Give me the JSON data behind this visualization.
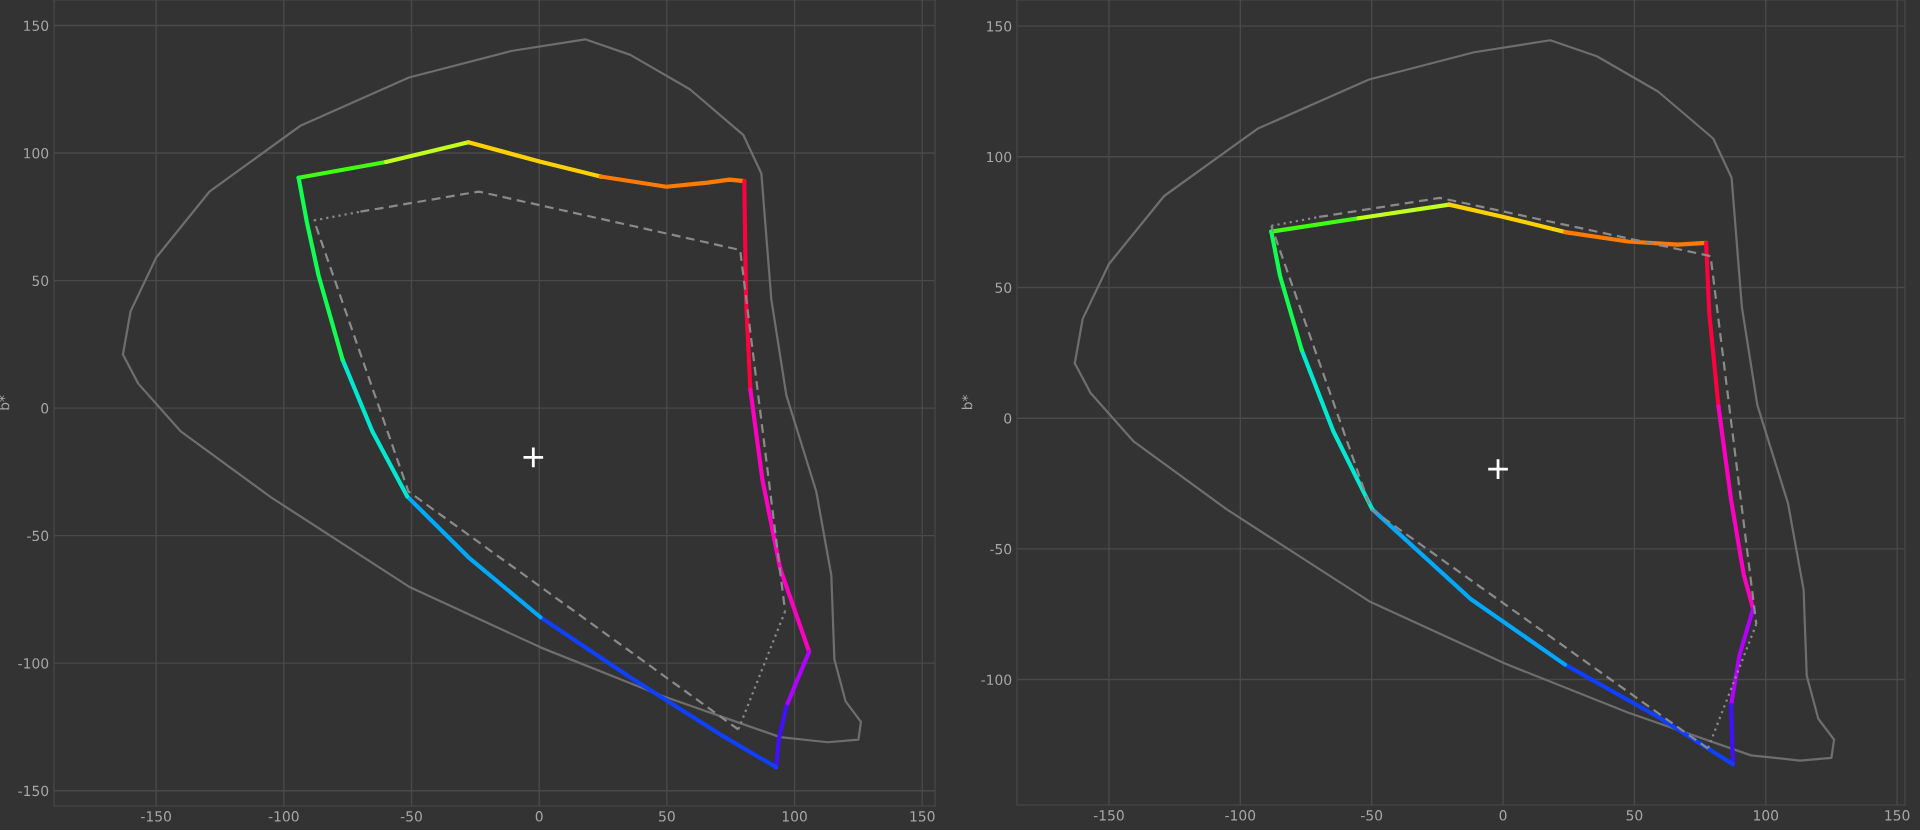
{
  "chart_data": [
    {
      "type": "line",
      "ylabel": "b*",
      "xlim": [
        -190,
        155
      ],
      "ylim": [
        -156,
        160
      ],
      "xticks": [
        -150,
        -100,
        -50,
        0,
        50,
        100,
        150
      ],
      "yticks": [
        -150,
        -100,
        -50,
        0,
        50,
        100,
        150
      ],
      "grid": true,
      "series": [
        {
          "color": "#6e6e6e",
          "line_style": "solid",
          "x": [
            -163,
            -160,
            -150,
            -129,
            -93.5,
            -51,
            -11,
            18,
            35.7,
            59,
            80,
            87,
            90.9,
            96.8,
            108.5,
            114.4,
            115.6,
            120,
            126
          ],
          "values": [
            21,
            38,
            59,
            85,
            110.7,
            129.6,
            140,
            144.6,
            138.5,
            125,
            107,
            92,
            42.6,
            5,
            -32.7,
            -65.6,
            -98.5,
            -115,
            -123
          ]
        },
        {
          "color": "#6e6e6e",
          "line_style": "solid",
          "x": [
            126,
            125,
            113,
            94.4,
            47.5,
            0.5,
            -51,
            -105,
            -140.5,
            -157,
            -163
          ],
          "values": [
            -123,
            -130,
            -131,
            -129,
            -112.6,
            -93.8,
            -70,
            -35,
            -9,
            9.6,
            21
          ]
        },
        {
          "color": "#8a8a8a",
          "line_style": "dashed",
          "x": [
            -70,
            -23.7,
            78.7,
            96.3
          ],
          "values": [
            77,
            84.9,
            62,
            -79.7
          ]
        },
        {
          "color": "#8a8a8a",
          "line_style": "dashed",
          "x": [
            78,
            -51.2,
            -88.2
          ],
          "values": [
            -126,
            -32.7,
            73.6
          ]
        },
        {
          "color": "#8a8a8a",
          "line_style": "dotted",
          "x": [
            -88.2,
            -70,
            null,
            96.3,
            78
          ],
          "values": [
            73.6,
            77,
            null,
            -79.7,
            -126
          ]
        },
        {
          "color": "#40ff10",
          "line_style": "solid",
          "x": [
            -94.2,
            -60
          ],
          "values": [
            90.3,
            96.5
          ]
        },
        {
          "color": "#c0ff20",
          "line_style": "solid",
          "x": [
            -60,
            -27.7
          ],
          "values": [
            96.5,
            104.2
          ]
        },
        {
          "color": "#ffd000",
          "line_style": "solid",
          "x": [
            -27.7,
            0.5,
            24
          ],
          "values": [
            104.2,
            96.6,
            90.8
          ]
        },
        {
          "color": "#ff7a00",
          "line_style": "solid",
          "x": [
            24,
            49.8,
            66,
            74.5,
            80.3
          ],
          "values": [
            90.8,
            86.8,
            88.4,
            89.6,
            89
          ]
        },
        {
          "color": "#ff0040",
          "line_style": "solid",
          "x": [
            80.3,
            81,
            82.7
          ],
          "values": [
            89,
            42.5,
            7.3
          ]
        },
        {
          "color": "#ff00c0",
          "line_style": "solid",
          "x": [
            82.7,
            87.4,
            94.4,
            105.7
          ],
          "values": [
            7.3,
            -28,
            -63,
            -95.5
          ]
        },
        {
          "color": "#b000ff",
          "line_style": "solid",
          "x": [
            105.7,
            100.5,
            96.8
          ],
          "values": [
            -95.5,
            -108,
            -117
          ]
        },
        {
          "color": "#4010ff",
          "line_style": "solid",
          "x": [
            96.8,
            93.8,
            92.8
          ],
          "values": [
            -117,
            -130,
            -140.8
          ]
        },
        {
          "color": "#1040ff",
          "line_style": "solid",
          "x": [
            92.8,
            71,
            35.7,
            0.5
          ],
          "values": [
            -140.8,
            -128,
            -105.6,
            -82
          ]
        },
        {
          "color": "#00a8ff",
          "line_style": "solid",
          "x": [
            0.5,
            -27.7,
            -51.7
          ],
          "values": [
            -82,
            -58.5,
            -34.6
          ]
        },
        {
          "color": "#00e8d0",
          "line_style": "solid",
          "x": [
            -51.7,
            -65.3,
            -77
          ],
          "values": [
            -34.6,
            -9.2,
            19
          ]
        },
        {
          "color": "#10ff50",
          "line_style": "solid",
          "x": [
            -77,
            -86.4,
            -91,
            -94.2
          ],
          "values": [
            19,
            52,
            73,
            90.3
          ]
        },
        {
          "type": "scatter",
          "color": "#ffffff",
          "marker": "cross",
          "x": [
            -2.3
          ],
          "values": [
            -19.3
          ]
        }
      ]
    },
    {
      "type": "line",
      "ylabel": "b*",
      "xlim": [
        -185,
        153
      ],
      "ylim": [
        -148,
        160
      ],
      "xticks": [
        -150,
        -100,
        -50,
        0,
        50,
        100,
        150
      ],
      "yticks": [
        -100,
        -50,
        0,
        50,
        100,
        150
      ],
      "grid": true,
      "series": [
        {
          "color": "#6e6e6e",
          "line_style": "solid",
          "x": [
            -163,
            -160,
            -150,
            -129,
            -93.5,
            -51,
            -11,
            18,
            35.7,
            59,
            80,
            87,
            90.9,
            96.8,
            108.5,
            114.4,
            115.6,
            120,
            126
          ],
          "values": [
            21,
            38,
            59,
            85,
            110.7,
            129.6,
            140,
            144.6,
            138.5,
            125,
            107,
            92,
            42.6,
            5,
            -32.7,
            -65.6,
            -98.5,
            -115,
            -123
          ]
        },
        {
          "color": "#6e6e6e",
          "line_style": "solid",
          "x": [
            126,
            125,
            113,
            94.4,
            47.5,
            0.5,
            -51,
            -105,
            -140.5,
            -157,
            -163
          ],
          "values": [
            -123,
            -130,
            -131,
            -129,
            -112.6,
            -93.8,
            -70,
            -35,
            -9,
            9.6,
            21
          ]
        },
        {
          "color": "#8a8a8a",
          "line_style": "dashed",
          "x": [
            -70,
            -24,
            79,
            96.4
          ],
          "values": [
            77,
            84.3,
            62,
            -78.8
          ]
        },
        {
          "color": "#8a8a8a",
          "line_style": "dashed",
          "x": [
            78,
            -50.3,
            -88.2
          ],
          "values": [
            -126.4,
            -34.8,
            73.6
          ]
        },
        {
          "color": "#8a8a8a",
          "line_style": "dotted",
          "x": [
            -88.2,
            -70,
            null,
            96.4,
            78
          ],
          "values": [
            73.6,
            77,
            null,
            -78.8,
            -126.4
          ]
        },
        {
          "color": "#40ff10",
          "line_style": "solid",
          "x": [
            -88.2,
            -55
          ],
          "values": [
            71.4,
            76.5
          ]
        },
        {
          "color": "#c0ff20",
          "line_style": "solid",
          "x": [
            -55,
            -20.5
          ],
          "values": [
            76.5,
            81.7
          ]
        },
        {
          "color": "#ffd000",
          "line_style": "solid",
          "x": [
            -20.5,
            -0.2,
            23.6
          ],
          "values": [
            81.7,
            77.1,
            71.2
          ]
        },
        {
          "color": "#ff7a00",
          "line_style": "solid",
          "x": [
            23.6,
            47.5,
            66.5,
            77.3
          ],
          "values": [
            71.2,
            67.6,
            66.4,
            67.1
          ]
        },
        {
          "color": "#ff0040",
          "line_style": "solid",
          "x": [
            77.3,
            78.5,
            82
          ],
          "values": [
            67.1,
            40.2,
            4.5
          ]
        },
        {
          "color": "#ff00c0",
          "line_style": "solid",
          "x": [
            82,
            86.8,
            91.6,
            95.2
          ],
          "values": [
            4.5,
            -31.2,
            -59.8,
            -72.9
          ]
        },
        {
          "color": "#b000ff",
          "line_style": "solid",
          "x": [
            95.2,
            90,
            86.8
          ],
          "values": [
            -72.9,
            -90.7,
            -109.8
          ]
        },
        {
          "color": "#4010ff",
          "line_style": "solid",
          "x": [
            86.8,
            87.5
          ],
          "values": [
            -109.8,
            -132.4
          ]
        },
        {
          "color": "#1040ff",
          "line_style": "solid",
          "x": [
            87.5,
            59.4,
            23.6
          ],
          "values": [
            -132.4,
            -114.5,
            -94.3
          ]
        },
        {
          "color": "#00a8ff",
          "line_style": "solid",
          "x": [
            23.6,
            -12.2,
            -49.8
          ],
          "values": [
            -94.3,
            -69.3,
            -34.8
          ]
        },
        {
          "color": "#00e8d0",
          "line_style": "solid",
          "x": [
            -49.8,
            -64.6,
            -76.6
          ],
          "values": [
            -34.8,
            -5,
            26
          ]
        },
        {
          "color": "#10ff50",
          "line_style": "solid",
          "x": [
            -76.6,
            -84.9,
            -88.2
          ],
          "values": [
            26,
            54.5,
            71.4
          ]
        },
        {
          "type": "scatter",
          "color": "#ffffff",
          "marker": "cross",
          "x": [
            -1.9
          ],
          "values": [
            -19.5
          ]
        }
      ]
    }
  ]
}
